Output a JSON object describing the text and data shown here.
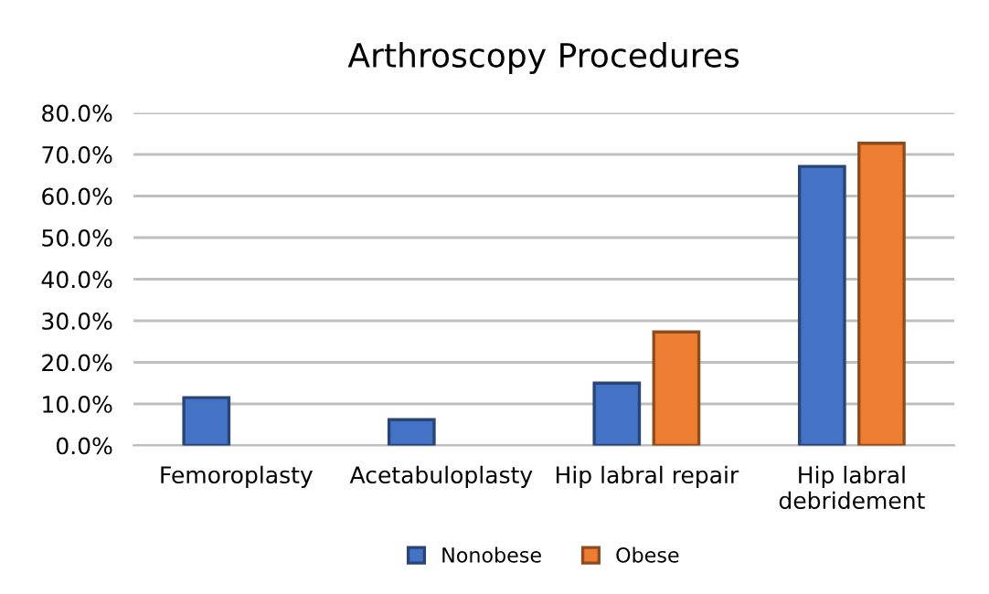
{
  "chart_data": {
    "type": "bar",
    "title": "Arthroscopy Procedures",
    "categories": [
      "Femoroplasty",
      "Acetabuloplasty",
      "Hip labral repair",
      "Hip labral\ndebridement"
    ],
    "series": [
      {
        "name": "Nonobese",
        "color": "#4472c4",
        "values": [
          11.5,
          6.2,
          15.0,
          67.1
        ]
      },
      {
        "name": "Obese",
        "color": "#ed7d31",
        "values": [
          null,
          null,
          27.3,
          72.7
        ]
      }
    ],
    "ylim": [
      0,
      80
    ],
    "yticks": [
      {
        "value": 0,
        "label": "0.0%"
      },
      {
        "value": 10,
        "label": "10.0%"
      },
      {
        "value": 20,
        "label": "20.0%"
      },
      {
        "value": 30,
        "label": "30.0%"
      },
      {
        "value": 40,
        "label": "40.0%"
      },
      {
        "value": 50,
        "label": "50.0%"
      },
      {
        "value": 60,
        "label": "60.0%"
      },
      {
        "value": 70,
        "label": "70.0%"
      },
      {
        "value": 80,
        "label": "80.0%"
      }
    ],
    "grid": "y",
    "legend": "bottom"
  }
}
